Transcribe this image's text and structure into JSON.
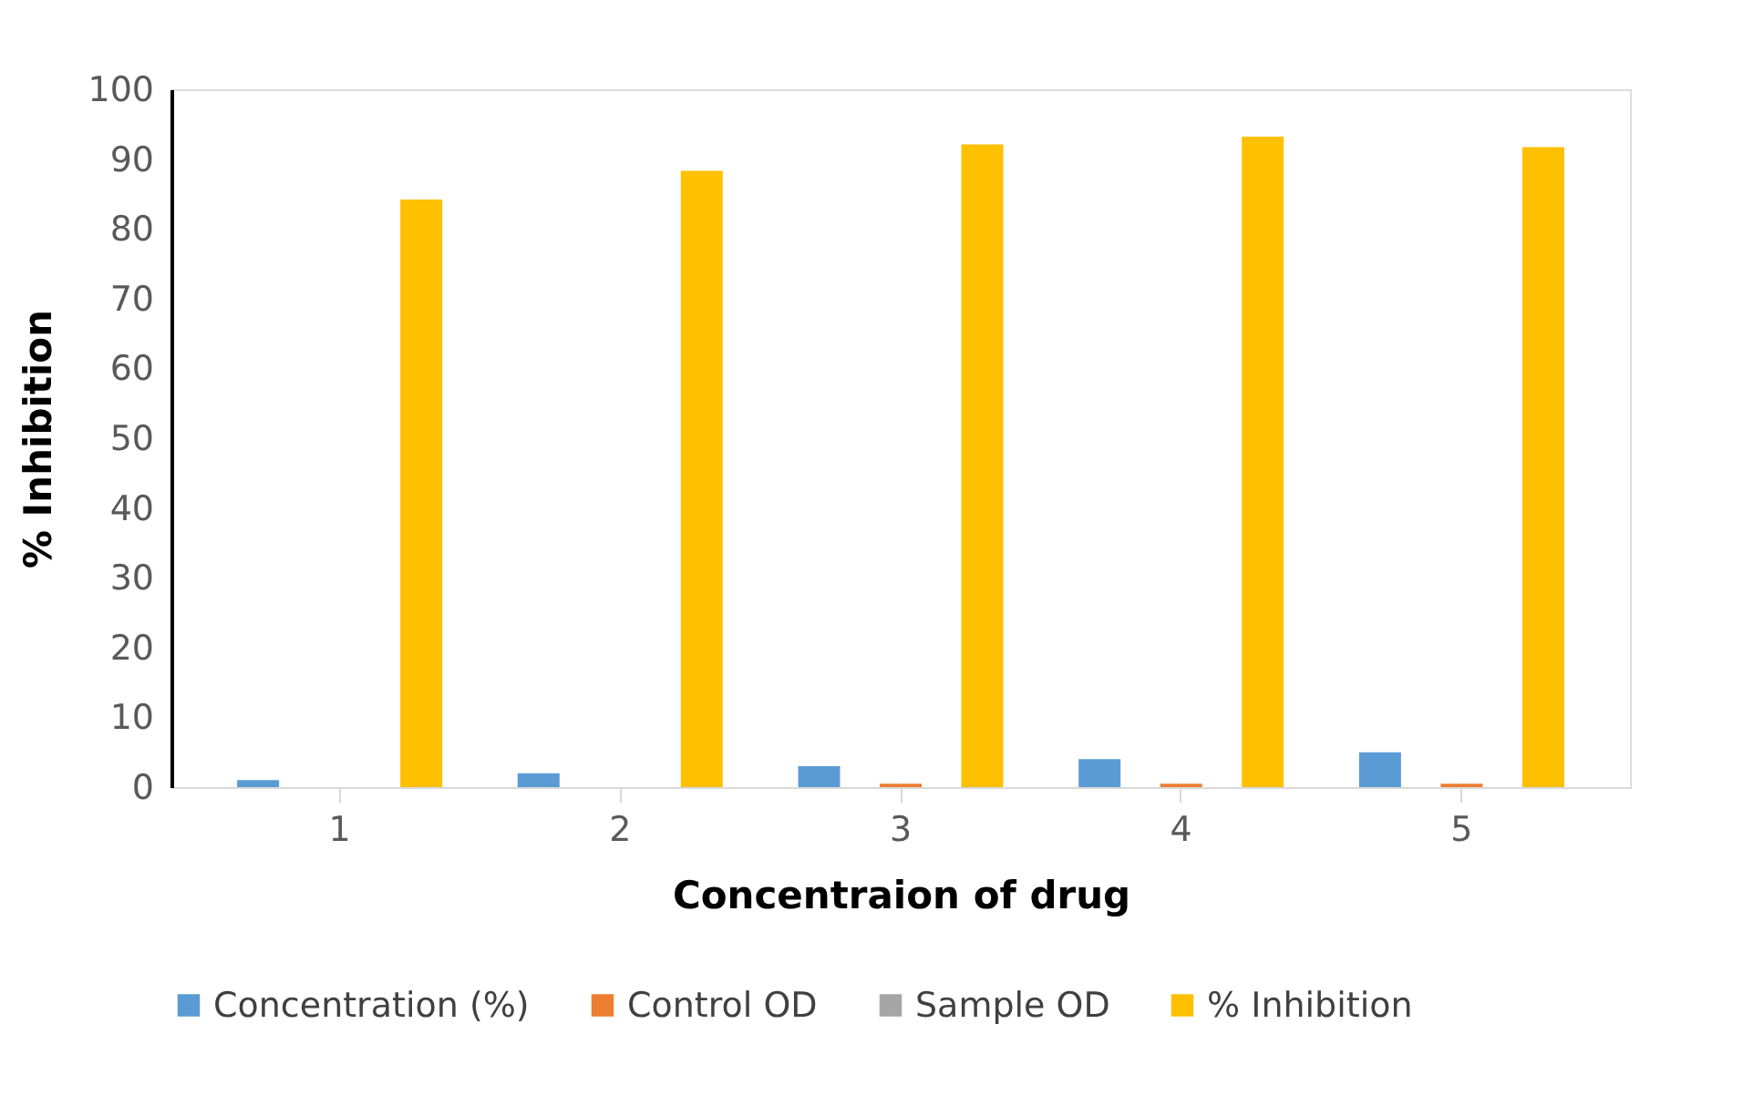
{
  "chart_data": {
    "type": "bar",
    "xlabel": "Concentraion of drug",
    "ylabel": "% Inhibition",
    "categories": [
      "1",
      "2",
      "3",
      "4",
      "5"
    ],
    "series": [
      {
        "name": "Concentration (%)",
        "color": "#5b9bd5",
        "values": [
          1,
          2,
          3,
          4,
          5
        ]
      },
      {
        "name": "Control OD",
        "color": "#ed7d31",
        "values": [
          null,
          null,
          0.5,
          0.5,
          0.5
        ]
      },
      {
        "name": "Sample OD",
        "color": "#a5a5a5",
        "values": [
          null,
          null,
          null,
          null,
          null
        ]
      },
      {
        "name": "% Inhibition",
        "color": "#ffc000",
        "values": [
          84.2,
          88.3,
          92.1,
          93.2,
          91.7
        ]
      }
    ],
    "ylim": [
      0,
      100
    ],
    "yticks": [
      0,
      10,
      20,
      30,
      40,
      50,
      60,
      70,
      80,
      90,
      100
    ],
    "grid": false,
    "legend": "bottom"
  }
}
